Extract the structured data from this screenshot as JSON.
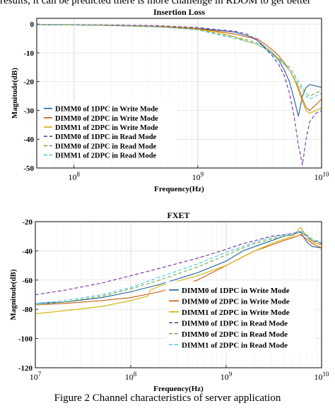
{
  "header_text": "results, it can be predicted there is more challenge in RDOM to get better",
  "caption": "Figure 2 Channel characteristics of server application",
  "chart_data": [
    {
      "type": "line",
      "title": "Insertion Loss",
      "xlabel": "Frequency(Hz)",
      "ylabel": "Magnitude(dB)",
      "xscale": "log",
      "xlim": [
        50000000,
        10000000000
      ],
      "ylim": [
        -50,
        2
      ],
      "yticks": [
        0,
        -10,
        -20,
        -30,
        -40,
        -50
      ],
      "ytick_labels": [
        "0",
        "-10",
        "-20",
        "-30",
        "-40",
        "-50"
      ],
      "xticks": [
        100000000,
        1000000000,
        10000000000
      ],
      "xtick_labels": [
        {
          "base": "10",
          "exp": "8"
        },
        {
          "base": "10",
          "exp": "9"
        },
        {
          "base": "10",
          "exp": "10"
        }
      ],
      "grid": true,
      "legend_position": "bottom-left",
      "series": [
        {
          "name": "DIMM0 of 1DPC in Write Mode",
          "color": "#1f5f9e",
          "dash": "solid",
          "x": [
            50000000,
            100000000,
            200000000,
            500000000,
            1000000000,
            1500000000,
            2000000000,
            2500000000,
            3000000000,
            3500000000,
            4000000000,
            4500000000,
            5000000000,
            5500000000,
            6000000000,
            6500000000,
            7000000000,
            7500000000,
            8000000000,
            9000000000,
            10000000000
          ],
          "y": [
            -0.2,
            -0.3,
            -0.5,
            -0.9,
            -1.5,
            -2.2,
            -2.8,
            -4.0,
            -5.5,
            -8.0,
            -10.0,
            -12.5,
            -16.0,
            -20.0,
            -26.0,
            -32.0,
            -25.0,
            -22.0,
            -21.0,
            -21.5,
            -22.0
          ]
        },
        {
          "name": "DIMM0 of 2DPC in Write Mode",
          "color": "#c55a11",
          "dash": "solid",
          "x": [
            50000000,
            100000000,
            200000000,
            500000000,
            1000000000,
            1500000000,
            2000000000,
            2500000000,
            3000000000,
            3500000000,
            4000000000,
            4500000000,
            5000000000,
            5500000000,
            6000000000,
            6500000000,
            7000000000,
            7500000000,
            8000000000,
            9000000000,
            10000000000
          ],
          "y": [
            -0.2,
            -0.3,
            -0.4,
            -0.8,
            -1.6,
            -2.6,
            -3.5,
            -4.5,
            -5.0,
            -7.0,
            -9.0,
            -11.0,
            -13.5,
            -16.0,
            -19.0,
            -22.0,
            -26.0,
            -29.0,
            -30.0,
            -28.0,
            -26.0
          ]
        },
        {
          "name": "DIMM1 of 2DPC in Write Mode",
          "color": "#d4b000",
          "dash": "solid",
          "x": [
            50000000,
            100000000,
            200000000,
            500000000,
            1000000000,
            1500000000,
            2000000000,
            2500000000,
            3000000000,
            3500000000,
            4000000000,
            4500000000,
            5000000000,
            5500000000,
            6000000000,
            6500000000,
            7000000000,
            7500000000,
            8000000000,
            9000000000,
            10000000000
          ],
          "y": [
            -0.2,
            -0.3,
            -0.5,
            -1.0,
            -1.8,
            -3.0,
            -4.5,
            -6.0,
            -7.0,
            -8.5,
            -10.5,
            -12.0,
            -14.0,
            -16.0,
            -19.0,
            -23.0,
            -27.0,
            -30.0,
            -31.0,
            -30.0,
            -29.0
          ]
        },
        {
          "name": "DIMM0 of 1DPC in Read Mode",
          "color": "#7030a0",
          "dash": "5,3",
          "x": [
            50000000,
            100000000,
            200000000,
            500000000,
            1000000000,
            1500000000,
            2000000000,
            2500000000,
            3000000000,
            3500000000,
            4000000000,
            4500000000,
            5000000000,
            5500000000,
            6000000000,
            6500000000,
            7000000000,
            7500000000,
            8000000000,
            9000000000,
            10000000000
          ],
          "y": [
            -0.1,
            -0.2,
            -0.3,
            -0.6,
            -1.2,
            -2.0,
            -2.5,
            -3.5,
            -5.5,
            -8.5,
            -11.0,
            -14.0,
            -18.0,
            -24.0,
            -32.0,
            -42.0,
            -49.0,
            -40.0,
            -34.0,
            -31.0,
            -30.0
          ]
        },
        {
          "name": "DIMM0 of 2DPC in Read Mode",
          "color": "#70ad47",
          "dash": "5,3",
          "x": [
            50000000,
            100000000,
            200000000,
            500000000,
            1000000000,
            1500000000,
            2000000000,
            2500000000,
            3000000000,
            3500000000,
            4000000000,
            4500000000,
            5000000000,
            5500000000,
            6000000000,
            6500000000,
            7000000000,
            7500000000,
            8000000000,
            9000000000,
            10000000000
          ],
          "y": [
            -0.2,
            -0.3,
            -0.5,
            -1.0,
            -1.9,
            -3.5,
            -4.5,
            -5.5,
            -6.5,
            -8.0,
            -10.0,
            -12.0,
            -13.5,
            -15.0,
            -17.5,
            -20.0,
            -22.0,
            -24.0,
            -25.0,
            -24.0,
            -23.0
          ]
        },
        {
          "name": "DIMM1 of 2DPC in Read Mode",
          "color": "#4bc5e8",
          "dash": "5,3",
          "x": [
            50000000,
            100000000,
            200000000,
            500000000,
            1000000000,
            1500000000,
            2000000000,
            2500000000,
            3000000000,
            3500000000,
            4000000000,
            4500000000,
            5000000000,
            5500000000,
            6000000000,
            6500000000,
            7000000000,
            7500000000,
            8000000000,
            9000000000,
            10000000000
          ],
          "y": [
            -0.2,
            -0.3,
            -0.5,
            -1.0,
            -2.0,
            -3.8,
            -5.0,
            -6.0,
            -7.0,
            -8.5,
            -10.5,
            -12.5,
            -14.0,
            -16.0,
            -18.5,
            -21.0,
            -23.0,
            -25.0,
            -26.0,
            -25.0,
            -24.0
          ]
        }
      ]
    },
    {
      "type": "line",
      "title": "FXET",
      "xlabel": "Frequency(Hz)",
      "ylabel": "Magnitude(dB)",
      "xscale": "log",
      "xlim": [
        10000000,
        10000000000
      ],
      "ylim": [
        -120,
        -20
      ],
      "yticks": [
        -20,
        -40,
        -60,
        -80,
        -100,
        -120
      ],
      "ytick_labels": [
        "-20",
        "-40",
        "-60",
        "-80",
        "-100",
        "-120"
      ],
      "xticks": [
        10000000,
        100000000,
        1000000000,
        10000000000
      ],
      "xtick_labels": [
        {
          "base": "10",
          "exp": "7"
        },
        {
          "base": "10",
          "exp": "8"
        },
        {
          "base": "10",
          "exp": "9"
        },
        {
          "base": "10",
          "exp": "10"
        }
      ],
      "grid": true,
      "legend_position": "bottom-right",
      "series": [
        {
          "name": "DIMM0 of 1DPC in Write Mode",
          "color": "#1f5f9e",
          "dash": "solid",
          "x": [
            10000000,
            20000000,
            50000000,
            100000000,
            200000000,
            500000000,
            1000000000,
            1500000000,
            2000000000,
            3000000000,
            4000000000,
            5000000000,
            6000000000,
            7000000000,
            8000000000,
            10000000000
          ],
          "y": [
            -76,
            -75,
            -72,
            -68,
            -63,
            -55,
            -47,
            -40,
            -37,
            -33,
            -30,
            -29,
            -27,
            -34,
            -37,
            -38
          ]
        },
        {
          "name": "DIMM0 of 2DPC in Write Mode",
          "color": "#c55a11",
          "dash": "solid",
          "x": [
            10000000,
            20000000,
            50000000,
            100000000,
            200000000,
            500000000,
            1000000000,
            1500000000,
            2000000000,
            3000000000,
            4000000000,
            5000000000,
            6000000000,
            7000000000,
            8000000000,
            10000000000
          ],
          "y": [
            -77,
            -76,
            -74,
            -72,
            -68,
            -60,
            -50,
            -44,
            -40,
            -36,
            -33,
            -31,
            -29,
            -32,
            -35,
            -38
          ]
        },
        {
          "name": "DIMM1 of 2DPC in Write Mode",
          "color": "#d4b000",
          "dash": "solid",
          "x": [
            10000000,
            20000000,
            50000000,
            100000000,
            150000000,
            160000000,
            200000000,
            500000000,
            1000000000,
            1500000000,
            2000000000,
            3000000000,
            4000000000,
            5000000000,
            6000000000,
            7000000000,
            8000000000,
            10000000000
          ],
          "y": [
            -83,
            -81,
            -78,
            -74,
            -71,
            -67,
            -64,
            -57,
            -50,
            -44,
            -40,
            -35,
            -32,
            -30,
            -24,
            -30,
            -34,
            -36
          ]
        },
        {
          "name": "DIMM0 of 1DPC in Read Mode",
          "color": "#7030a0",
          "dash": "5,3",
          "x": [
            10000000,
            20000000,
            50000000,
            100000000,
            200000000,
            500000000,
            1000000000,
            1500000000,
            2000000000,
            3000000000,
            4000000000,
            5000000000,
            6000000000,
            7000000000,
            8000000000,
            10000000000
          ],
          "y": [
            -70,
            -67,
            -62,
            -57,
            -52,
            -45,
            -39,
            -35,
            -33,
            -30,
            -29,
            -28,
            -27,
            -30,
            -33,
            -35
          ]
        },
        {
          "name": "DIMM0 of 2DPC in Read Mode",
          "color": "#70ad47",
          "dash": "5,3",
          "x": [
            10000000,
            20000000,
            50000000,
            100000000,
            200000000,
            500000000,
            1000000000,
            1500000000,
            2000000000,
            3000000000,
            4000000000,
            5000000000,
            6000000000,
            7000000000,
            8000000000,
            10000000000
          ],
          "y": [
            -77,
            -75,
            -71,
            -66,
            -60,
            -51,
            -43,
            -38,
            -35,
            -32,
            -30,
            -29,
            -27,
            -30,
            -33,
            -34
          ]
        },
        {
          "name": "DIMM1 of 2DPC in Read Mode",
          "color": "#4bc5e8",
          "dash": "5,3",
          "x": [
            10000000,
            20000000,
            50000000,
            100000000,
            200000000,
            500000000,
            1000000000,
            1500000000,
            2000000000,
            3000000000,
            4000000000,
            5000000000,
            6000000000,
            7000000000,
            8000000000,
            10000000000
          ],
          "y": [
            -76,
            -74,
            -70,
            -65,
            -58,
            -49,
            -41,
            -37,
            -34,
            -31,
            -29,
            -28,
            -26,
            -29,
            -32,
            -34
          ]
        }
      ]
    }
  ]
}
